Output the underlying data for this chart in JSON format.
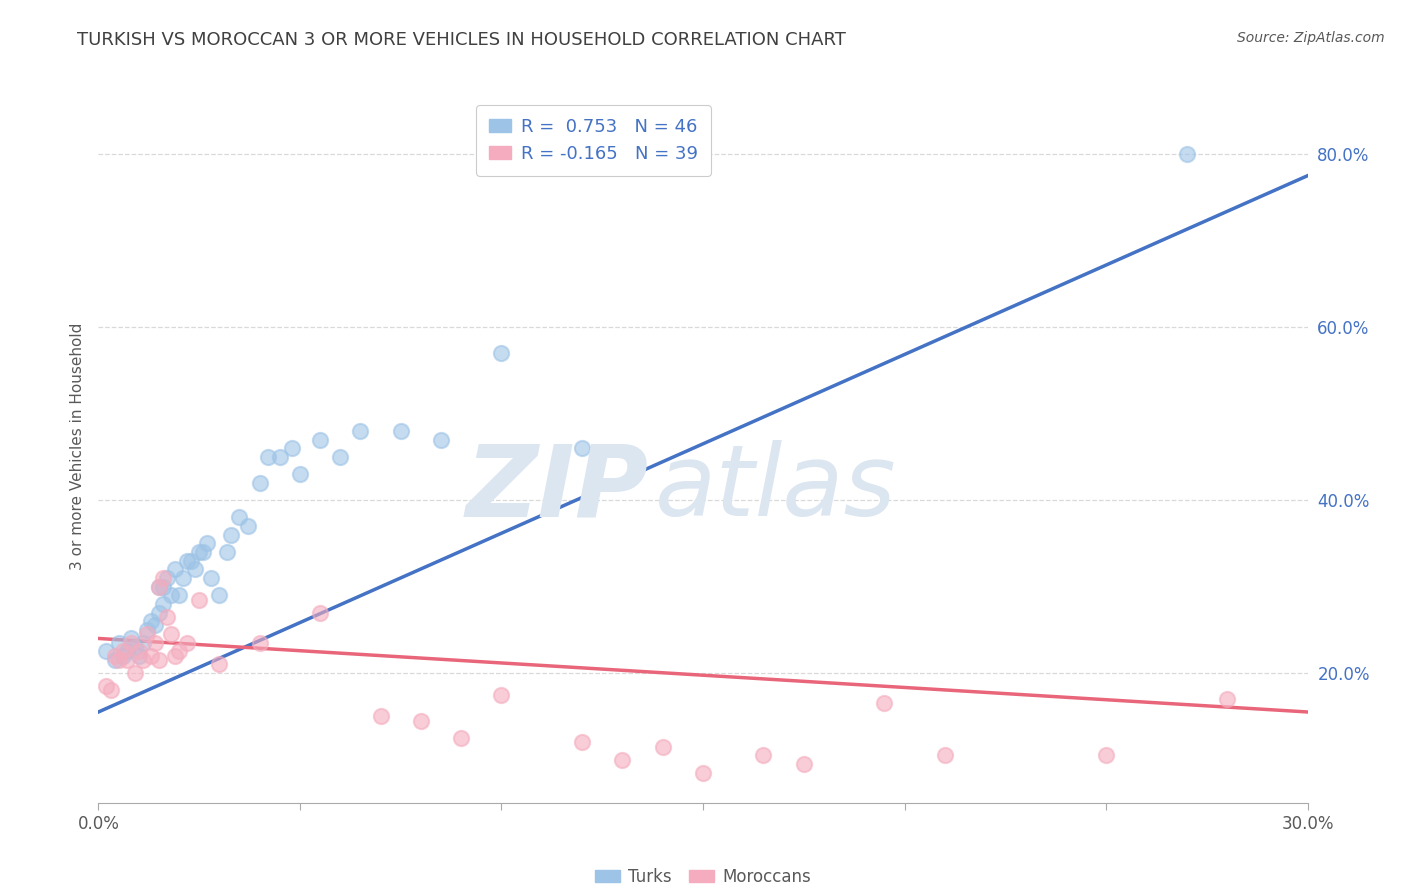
{
  "title": "TURKISH VS MOROCCAN 3 OR MORE VEHICLES IN HOUSEHOLD CORRELATION CHART",
  "source_text": "Source: ZipAtlas.com",
  "ylabel": "3 or more Vehicles in Household",
  "x_min": 0.0,
  "x_max": 0.3,
  "y_min": 0.05,
  "y_max": 0.875,
  "legend_label_turkish": "R =  0.753   N = 46",
  "legend_label_moroccan": "R = -0.165   N = 39",
  "legend_bottom_turkish": "Turks",
  "legend_bottom_moroccan": "Moroccans",
  "turkish_color": "#9dc3e6",
  "moroccan_color": "#f4acbe",
  "turkish_line_color": "#4472c4",
  "moroccan_line_color": "#e9667a",
  "watermark_zip": "ZIP",
  "watermark_atlas": "atlas",
  "watermark_color": "#dce6f1",
  "title_color": "#404040",
  "axis_label_color": "#595959",
  "tick_color": "#595959",
  "grid_color": "#d9d9d9",
  "background_color": "#ffffff",
  "turkish_scatter_x": [
    0.002,
    0.004,
    0.005,
    0.006,
    0.007,
    0.008,
    0.009,
    0.01,
    0.011,
    0.012,
    0.013,
    0.014,
    0.015,
    0.015,
    0.016,
    0.016,
    0.017,
    0.018,
    0.019,
    0.02,
    0.021,
    0.022,
    0.023,
    0.024,
    0.025,
    0.026,
    0.027,
    0.028,
    0.03,
    0.032,
    0.033,
    0.035,
    0.037,
    0.04,
    0.042,
    0.045,
    0.048,
    0.05,
    0.055,
    0.06,
    0.065,
    0.075,
    0.085,
    0.1,
    0.12,
    0.27
  ],
  "turkish_scatter_y": [
    0.225,
    0.215,
    0.235,
    0.22,
    0.225,
    0.24,
    0.23,
    0.22,
    0.235,
    0.25,
    0.26,
    0.255,
    0.27,
    0.3,
    0.28,
    0.3,
    0.31,
    0.29,
    0.32,
    0.29,
    0.31,
    0.33,
    0.33,
    0.32,
    0.34,
    0.34,
    0.35,
    0.31,
    0.29,
    0.34,
    0.36,
    0.38,
    0.37,
    0.42,
    0.45,
    0.45,
    0.46,
    0.43,
    0.47,
    0.45,
    0.48,
    0.48,
    0.47,
    0.57,
    0.46,
    0.8
  ],
  "moroccan_scatter_x": [
    0.002,
    0.003,
    0.004,
    0.005,
    0.006,
    0.007,
    0.008,
    0.009,
    0.01,
    0.011,
    0.012,
    0.013,
    0.014,
    0.015,
    0.015,
    0.016,
    0.017,
    0.018,
    0.019,
    0.02,
    0.022,
    0.025,
    0.03,
    0.04,
    0.055,
    0.07,
    0.08,
    0.09,
    0.1,
    0.12,
    0.13,
    0.14,
    0.15,
    0.165,
    0.175,
    0.195,
    0.21,
    0.25,
    0.28
  ],
  "moroccan_scatter_y": [
    0.185,
    0.18,
    0.22,
    0.215,
    0.225,
    0.215,
    0.235,
    0.2,
    0.225,
    0.215,
    0.245,
    0.22,
    0.235,
    0.215,
    0.3,
    0.31,
    0.265,
    0.245,
    0.22,
    0.225,
    0.235,
    0.285,
    0.21,
    0.235,
    0.27,
    0.15,
    0.145,
    0.125,
    0.175,
    0.12,
    0.1,
    0.115,
    0.085,
    0.105,
    0.095,
    0.165,
    0.105,
    0.105,
    0.17
  ],
  "turkish_trend_x": [
    0.0,
    0.3
  ],
  "turkish_trend_y": [
    0.155,
    0.775
  ],
  "moroccan_trend_x": [
    0.0,
    0.3
  ],
  "moroccan_trend_y": [
    0.24,
    0.155
  ],
  "y_ticks": [
    0.2,
    0.4,
    0.6,
    0.8
  ],
  "x_ticks": [
    0.0,
    0.05,
    0.1,
    0.15,
    0.2,
    0.25,
    0.3
  ]
}
